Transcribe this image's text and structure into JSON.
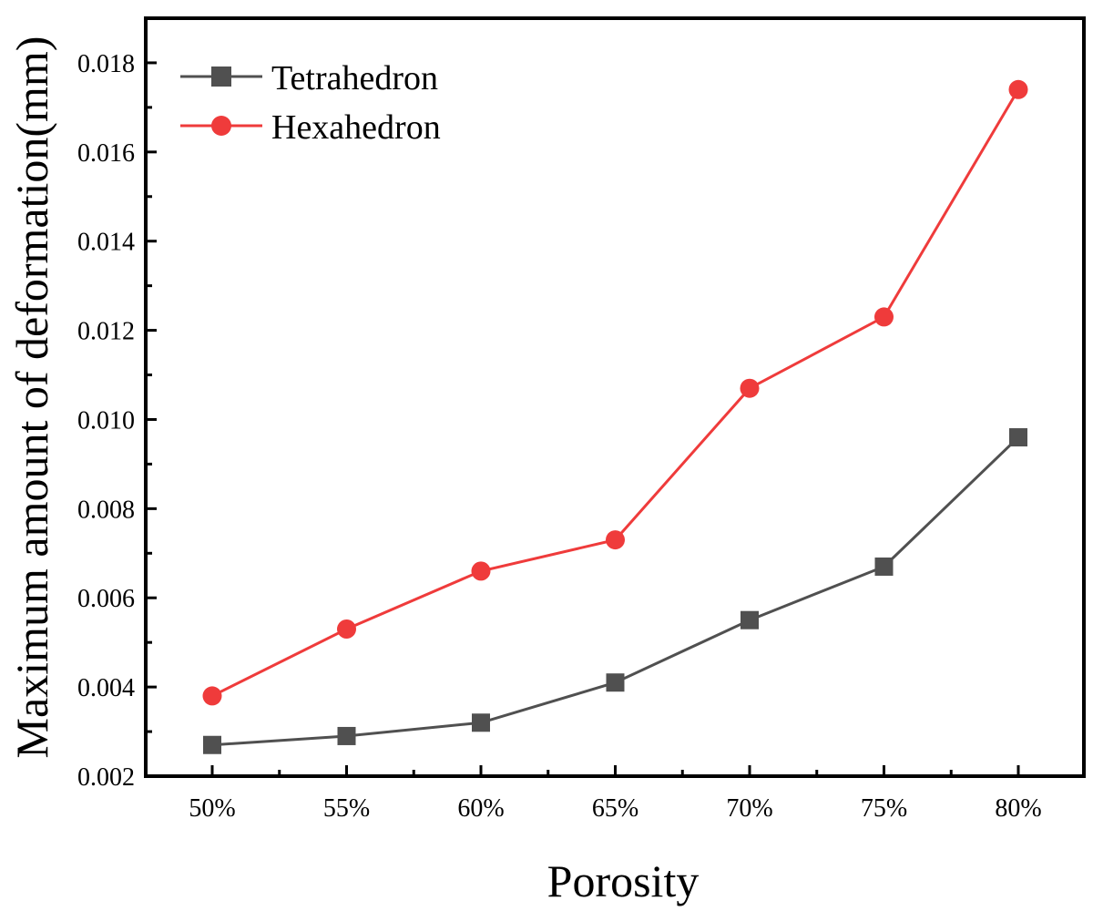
{
  "chart_data": {
    "type": "line",
    "title": "",
    "xlabel": "Porosity",
    "ylabel": "Maximum amount of deformation(mm)",
    "categories": [
      "50%",
      "55%",
      "60%",
      "65%",
      "70%",
      "75%",
      "80%"
    ],
    "ylim": [
      0.002,
      0.019
    ],
    "yticks": [
      0.002,
      0.004,
      0.006,
      0.008,
      0.01,
      0.012,
      0.014,
      0.016,
      0.018
    ],
    "ytick_labels": [
      "0.002",
      "0.004",
      "0.006",
      "0.008",
      "0.010",
      "0.012",
      "0.014",
      "0.016",
      "0.018"
    ],
    "grid": false,
    "legend_position": "top-left",
    "series": [
      {
        "name": "Tetrahedron",
        "color": "#505050",
        "marker": "square",
        "values": [
          0.0027,
          0.0029,
          0.0032,
          0.0041,
          0.0055,
          0.0067,
          0.0096
        ]
      },
      {
        "name": "Hexahedron",
        "color": "#ef3b3b",
        "marker": "circle",
        "values": [
          0.0038,
          0.0053,
          0.0066,
          0.0073,
          0.0107,
          0.0123,
          0.0174
        ]
      }
    ]
  }
}
